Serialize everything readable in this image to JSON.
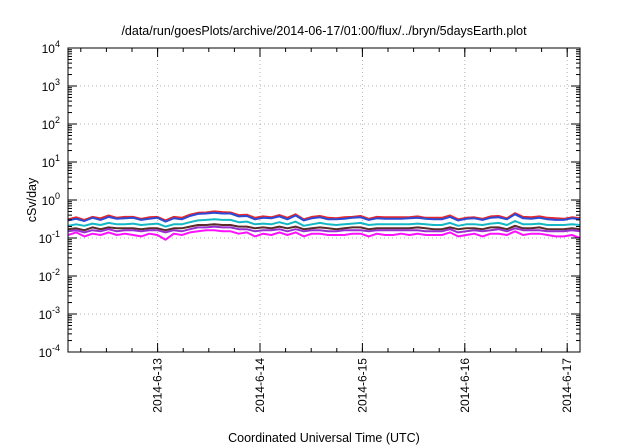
{
  "chart_data": {
    "type": "line",
    "title": "/data/run/goesPlots/archive/2014-06-17/01:00/flux/../bryn/5daysEarth.plot",
    "xlabel": "Coordinated Universal Time (UTC)",
    "ylabel": "cSv/day",
    "xlim": [
      "2014-06-12 03:00",
      "2014-06-17 03:00"
    ],
    "ylog": true,
    "ylim": [
      0.0001,
      10000
    ],
    "grid": true,
    "x_ticks": [
      "2014-6-13",
      "2014-6-14",
      "2014-6-15",
      "2014-6-16",
      "2014-6-17"
    ],
    "y_ticks": [
      {
        "base": "10",
        "exp": "4"
      },
      {
        "base": "10",
        "exp": "3"
      },
      {
        "base": "10",
        "exp": "2"
      },
      {
        "base": "10",
        "exp": "1"
      },
      {
        "base": "10",
        "exp": "0"
      },
      {
        "base": "10",
        "exp": "-1"
      },
      {
        "base": "10",
        "exp": "-2"
      },
      {
        "base": "10",
        "exp": "-3"
      },
      {
        "base": "10",
        "exp": "-4"
      }
    ],
    "series": [
      {
        "color": "#e8262b",
        "values": [
          0.31,
          0.35,
          0.3,
          0.36,
          0.33,
          0.39,
          0.34,
          0.36,
          0.36,
          0.32,
          0.35,
          0.36,
          0.29,
          0.36,
          0.34,
          0.41,
          0.46,
          0.47,
          0.5,
          0.48,
          0.47,
          0.4,
          0.41,
          0.34,
          0.37,
          0.35,
          0.4,
          0.34,
          0.42,
          0.31,
          0.36,
          0.38,
          0.34,
          0.33,
          0.35,
          0.36,
          0.38,
          0.32,
          0.36,
          0.35,
          0.35,
          0.35,
          0.35,
          0.37,
          0.34,
          0.34,
          0.34,
          0.39,
          0.31,
          0.34,
          0.35,
          0.32,
          0.37,
          0.38,
          0.33,
          0.45,
          0.36,
          0.35,
          0.37,
          0.34,
          0.33,
          0.32,
          0.35,
          0.33
        ]
      },
      {
        "color": "#2a4bd6",
        "values": [
          0.29,
          0.32,
          0.28,
          0.34,
          0.3,
          0.36,
          0.32,
          0.33,
          0.34,
          0.3,
          0.32,
          0.34,
          0.27,
          0.33,
          0.31,
          0.38,
          0.43,
          0.44,
          0.46,
          0.44,
          0.44,
          0.37,
          0.38,
          0.31,
          0.34,
          0.33,
          0.37,
          0.31,
          0.39,
          0.29,
          0.33,
          0.35,
          0.31,
          0.31,
          0.32,
          0.34,
          0.35,
          0.3,
          0.33,
          0.32,
          0.32,
          0.32,
          0.33,
          0.34,
          0.32,
          0.31,
          0.31,
          0.36,
          0.29,
          0.32,
          0.33,
          0.3,
          0.34,
          0.35,
          0.31,
          0.42,
          0.33,
          0.32,
          0.34,
          0.31,
          0.3,
          0.3,
          0.33,
          0.31
        ]
      },
      {
        "color": "#14b8c4",
        "values": [
          0.21,
          0.23,
          0.21,
          0.24,
          0.22,
          0.25,
          0.23,
          0.23,
          0.24,
          0.22,
          0.23,
          0.24,
          0.2,
          0.23,
          0.23,
          0.26,
          0.29,
          0.3,
          0.31,
          0.3,
          0.3,
          0.26,
          0.27,
          0.23,
          0.24,
          0.23,
          0.26,
          0.23,
          0.27,
          0.21,
          0.23,
          0.25,
          0.23,
          0.22,
          0.23,
          0.24,
          0.25,
          0.22,
          0.23,
          0.23,
          0.23,
          0.23,
          0.23,
          0.24,
          0.23,
          0.22,
          0.22,
          0.25,
          0.21,
          0.23,
          0.23,
          0.22,
          0.24,
          0.25,
          0.22,
          0.28,
          0.23,
          0.23,
          0.24,
          0.22,
          0.22,
          0.22,
          0.23,
          0.22
        ]
      },
      {
        "color": "#5a2a2a",
        "values": [
          0.17,
          0.18,
          0.16,
          0.19,
          0.17,
          0.19,
          0.18,
          0.18,
          0.18,
          0.17,
          0.18,
          0.18,
          0.16,
          0.18,
          0.18,
          0.2,
          0.22,
          0.22,
          0.23,
          0.22,
          0.22,
          0.2,
          0.2,
          0.18,
          0.19,
          0.18,
          0.2,
          0.18,
          0.2,
          0.17,
          0.18,
          0.19,
          0.18,
          0.17,
          0.18,
          0.19,
          0.19,
          0.17,
          0.18,
          0.18,
          0.18,
          0.18,
          0.18,
          0.19,
          0.18,
          0.17,
          0.17,
          0.19,
          0.17,
          0.18,
          0.18,
          0.17,
          0.19,
          0.19,
          0.17,
          0.21,
          0.18,
          0.18,
          0.19,
          0.17,
          0.17,
          0.17,
          0.18,
          0.17
        ]
      },
      {
        "color": "#9a2fd0",
        "values": [
          0.15,
          0.16,
          0.14,
          0.16,
          0.15,
          0.17,
          0.15,
          0.16,
          0.16,
          0.15,
          0.16,
          0.16,
          0.14,
          0.16,
          0.15,
          0.17,
          0.19,
          0.19,
          0.2,
          0.19,
          0.19,
          0.17,
          0.17,
          0.15,
          0.16,
          0.16,
          0.17,
          0.15,
          0.17,
          0.15,
          0.16,
          0.16,
          0.15,
          0.15,
          0.16,
          0.16,
          0.16,
          0.15,
          0.16,
          0.16,
          0.16,
          0.16,
          0.16,
          0.16,
          0.15,
          0.15,
          0.15,
          0.17,
          0.14,
          0.15,
          0.16,
          0.15,
          0.16,
          0.17,
          0.15,
          0.18,
          0.16,
          0.16,
          0.16,
          0.15,
          0.15,
          0.15,
          0.16,
          0.15
        ]
      },
      {
        "color": "#ff10ff",
        "values": [
          0.12,
          0.14,
          0.11,
          0.13,
          0.12,
          0.14,
          0.12,
          0.13,
          0.12,
          0.11,
          0.13,
          0.12,
          0.09,
          0.13,
          0.12,
          0.14,
          0.15,
          0.16,
          0.16,
          0.15,
          0.15,
          0.13,
          0.14,
          0.11,
          0.13,
          0.12,
          0.14,
          0.12,
          0.14,
          0.11,
          0.13,
          0.13,
          0.12,
          0.12,
          0.12,
          0.13,
          0.13,
          0.11,
          0.13,
          0.12,
          0.12,
          0.13,
          0.12,
          0.13,
          0.12,
          0.12,
          0.12,
          0.14,
          0.11,
          0.12,
          0.13,
          0.11,
          0.13,
          0.13,
          0.12,
          0.15,
          0.12,
          0.13,
          0.13,
          0.12,
          0.11,
          0.11,
          0.12,
          0.1
        ]
      }
    ]
  }
}
